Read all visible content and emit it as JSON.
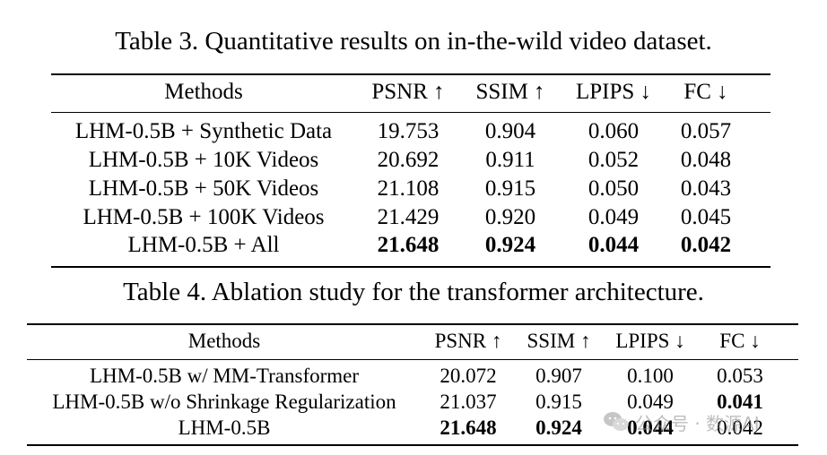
{
  "table3": {
    "caption": "Table 3. Quantitative results on in-the-wild video dataset.",
    "headers": [
      "Methods",
      "PSNR ↑",
      "SSIM ↑",
      "LPIPS ↓",
      "FC ↓"
    ],
    "rows": [
      [
        "LHM-0.5B + Synthetic Data",
        "19.753",
        "0.904",
        "0.060",
        "0.057"
      ],
      [
        "LHM-0.5B + 10K Videos",
        "20.692",
        "0.911",
        "0.052",
        "0.048"
      ],
      [
        "LHM-0.5B + 50K Videos",
        "21.108",
        "0.915",
        "0.050",
        "0.043"
      ],
      [
        "LHM-0.5B + 100K Videos",
        "21.429",
        "0.920",
        "0.049",
        "0.045"
      ],
      [
        "LHM-0.5B + All",
        "21.648",
        "0.924",
        "0.044",
        "0.042"
      ]
    ],
    "bold_cells": [
      [
        4,
        1
      ],
      [
        4,
        2
      ],
      [
        4,
        3
      ],
      [
        4,
        4
      ]
    ]
  },
  "table4": {
    "caption": "Table 4. Ablation study for the transformer architecture.",
    "headers": [
      "Methods",
      "PSNR ↑",
      "SSIM ↑",
      "LPIPS ↓",
      "FC ↓"
    ],
    "rows": [
      [
        "LHM-0.5B w/ MM-Transformer",
        "20.072",
        "0.907",
        "0.100",
        "0.053"
      ],
      [
        "LHM-0.5B w/o Shrinkage Regularization",
        "21.037",
        "0.915",
        "0.049",
        "0.041"
      ],
      [
        "LHM-0.5B",
        "21.648",
        "0.924",
        "0.044",
        "0.042"
      ]
    ],
    "bold_cells": [
      [
        1,
        4
      ],
      [
        2,
        1
      ],
      [
        2,
        2
      ],
      [
        2,
        3
      ]
    ]
  },
  "watermark": {
    "text": "公众号 · 数源AI",
    "icon": "wechat-icon"
  }
}
